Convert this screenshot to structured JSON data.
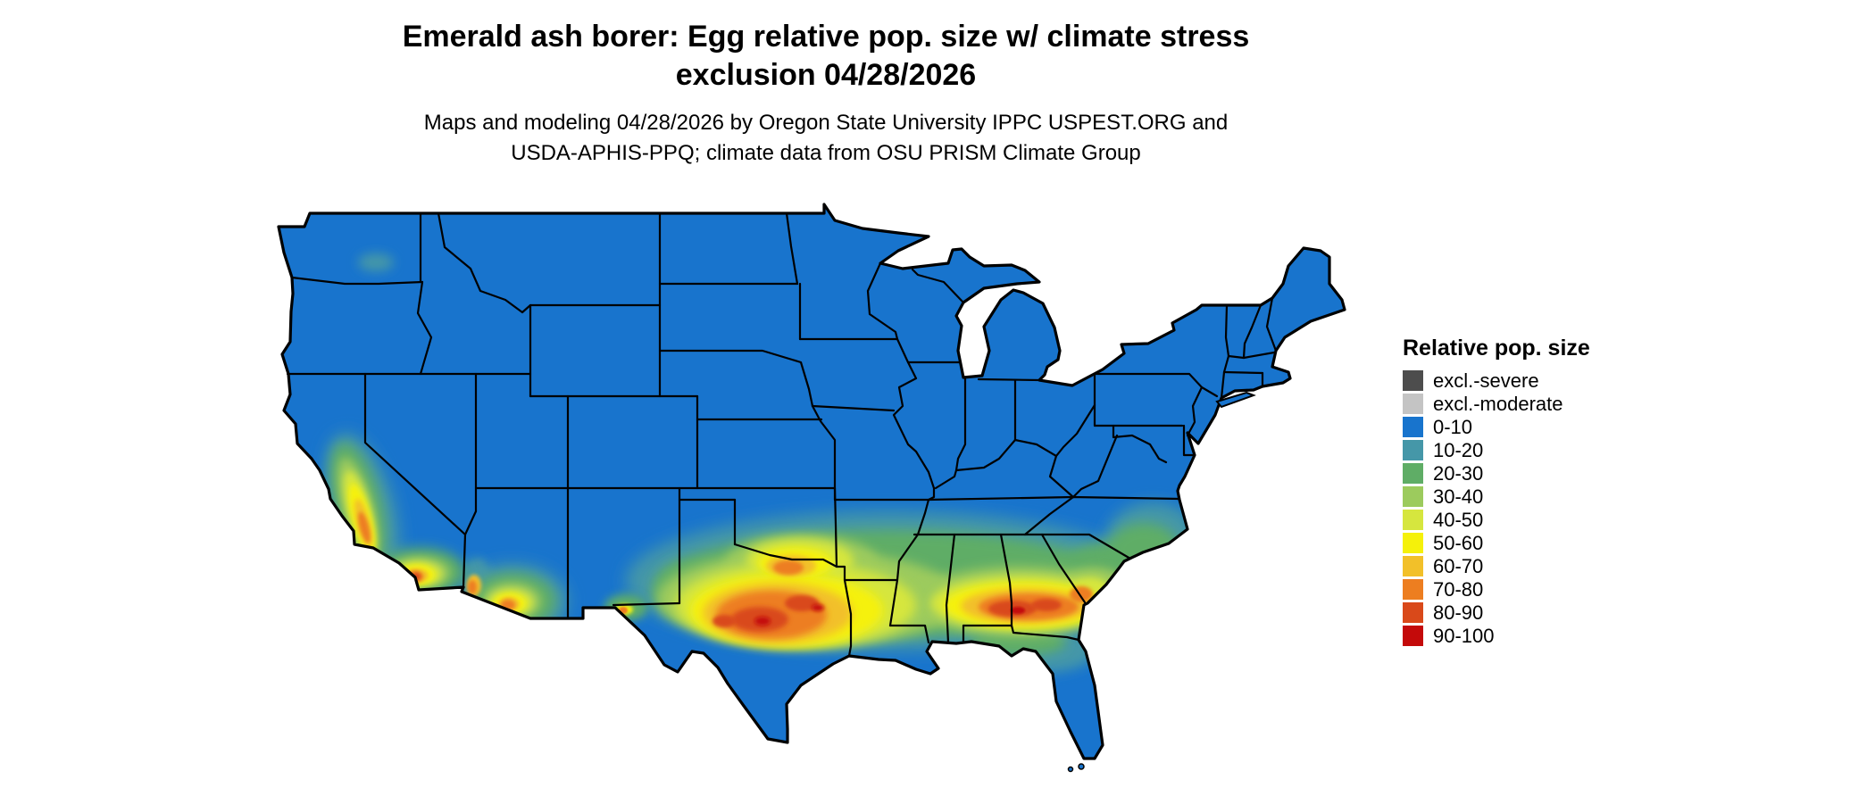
{
  "title": {
    "line1": "Emerald ash borer: Egg relative pop. size w/ climate stress",
    "line2": "exclusion 04/28/2026"
  },
  "subtitle": {
    "line1": "Maps and modeling 04/28/2026 by Oregon State University IPPC USPEST.ORG and",
    "line2": "USDA-APHIS-PPQ; climate data from OSU PRISM Climate Group"
  },
  "legend": {
    "title": "Relative pop. size",
    "items": [
      {
        "label": "excl.-severe",
        "color": "#4D4D4D"
      },
      {
        "label": "excl.-moderate",
        "color": "#C4C4C4"
      },
      {
        "label": "0-10",
        "color": "#1874CD"
      },
      {
        "label": "10-20",
        "color": "#4597A8"
      },
      {
        "label": "20-30",
        "color": "#5FAD66"
      },
      {
        "label": "30-40",
        "color": "#9CCB5D"
      },
      {
        "label": "40-50",
        "color": "#D6E63E"
      },
      {
        "label": "50-60",
        "color": "#F5F10A"
      },
      {
        "label": "60-70",
        "color": "#F2C029"
      },
      {
        "label": "70-80",
        "color": "#ED7E20"
      },
      {
        "label": "80-90",
        "color": "#D9491A"
      },
      {
        "label": "90-100",
        "color": "#C40A0A"
      }
    ]
  },
  "map": {
    "name": "Contiguous United States relative population size raster map",
    "base_fill": "#1874CD",
    "border_color": "#000000",
    "background_color": "#FFFFFF"
  }
}
